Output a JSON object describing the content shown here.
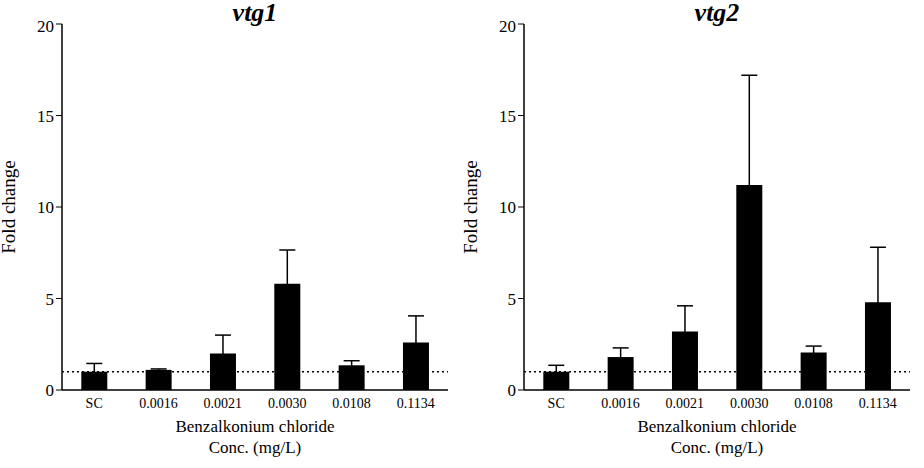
{
  "chart_data": [
    {
      "type": "bar",
      "title": "vtg1",
      "xlabel": "Benzalkonium chloride\nConc. (mg/L)",
      "ylabel": "Fold change",
      "categories": [
        "SC",
        "0.0016",
        "0.0021",
        "0.0030",
        "0.0108",
        "0.1134"
      ],
      "values": [
        1.0,
        1.1,
        2.0,
        5.8,
        1.35,
        2.6
      ],
      "errors": [
        0.45,
        0.05,
        1.0,
        1.85,
        0.25,
        1.45
      ],
      "reference_line": 1,
      "color": "#000000",
      "ylim": [
        0,
        20
      ],
      "yticks": [
        0,
        5,
        10,
        15,
        20
      ],
      "grid": false
    },
    {
      "type": "bar",
      "title": "vtg2",
      "xlabel": "Benzalkonium chloride\nConc. (mg/L)",
      "ylabel": "Fold change",
      "categories": [
        "SC",
        "0.0016",
        "0.0021",
        "0.0030",
        "0.0108",
        "0.1134"
      ],
      "values": [
        1.0,
        1.8,
        3.2,
        11.2,
        2.05,
        4.8
      ],
      "errors": [
        0.35,
        0.5,
        1.4,
        6.0,
        0.35,
        3.0
      ],
      "reference_line": 1,
      "color": "#000000",
      "ylim": [
        0,
        20
      ],
      "yticks": [
        0,
        5,
        10,
        15,
        20
      ],
      "grid": false
    }
  ]
}
